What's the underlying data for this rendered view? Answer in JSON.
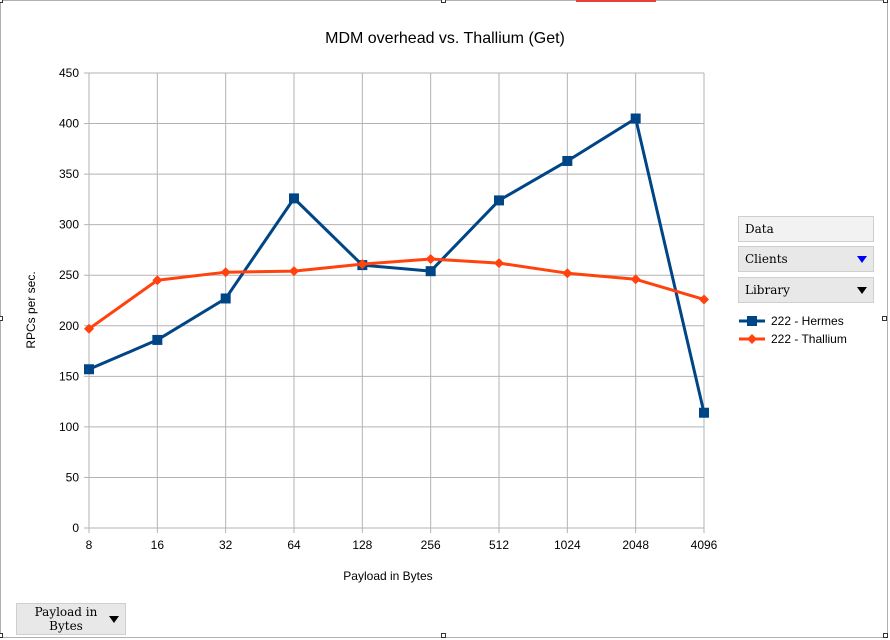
{
  "chart_data": {
    "type": "line",
    "title": "MDM overhead vs. Thallium (Get)",
    "xlabel": "Payload in Bytes",
    "ylabel": "RPCs per sec.",
    "categories": [
      "8",
      "16",
      "32",
      "64",
      "128",
      "256",
      "512",
      "1024",
      "2048",
      "4096"
    ],
    "ylim": [
      0,
      450
    ],
    "yticks": [
      0,
      50,
      100,
      150,
      200,
      250,
      300,
      350,
      400,
      450
    ],
    "grid": true,
    "legend_position": "right",
    "series": [
      {
        "name": "222 - Hermes",
        "color": "#004586",
        "marker": "square",
        "values": [
          157,
          186,
          227,
          326,
          260,
          254,
          324,
          363,
          405,
          114
        ]
      },
      {
        "name": "222 - Thallium",
        "color": "#ff420e",
        "marker": "diamond",
        "values": [
          197,
          245,
          253,
          254,
          261,
          266,
          262,
          252,
          246,
          226
        ]
      }
    ]
  },
  "pivot_fields": {
    "data": "Data",
    "clients": "Clients",
    "library": "Library",
    "payload": "Payload in Bytes"
  }
}
